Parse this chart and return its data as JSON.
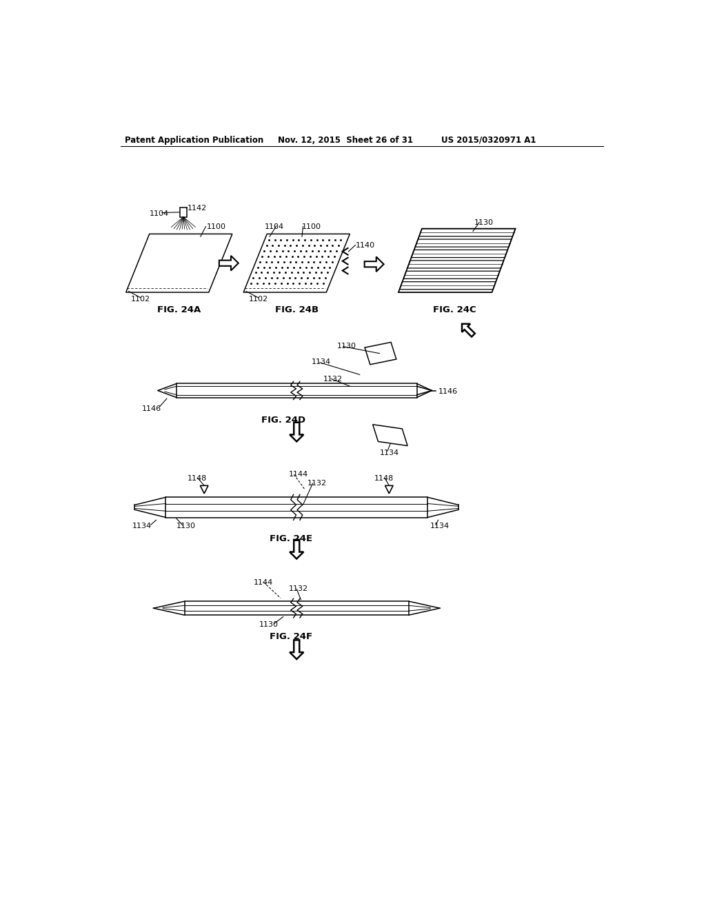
{
  "bg_color": "#ffffff",
  "header_left": "Patent Application Publication",
  "header_mid": "Nov. 12, 2015  Sheet 26 of 31",
  "header_right": "US 2015/0320971 A1"
}
